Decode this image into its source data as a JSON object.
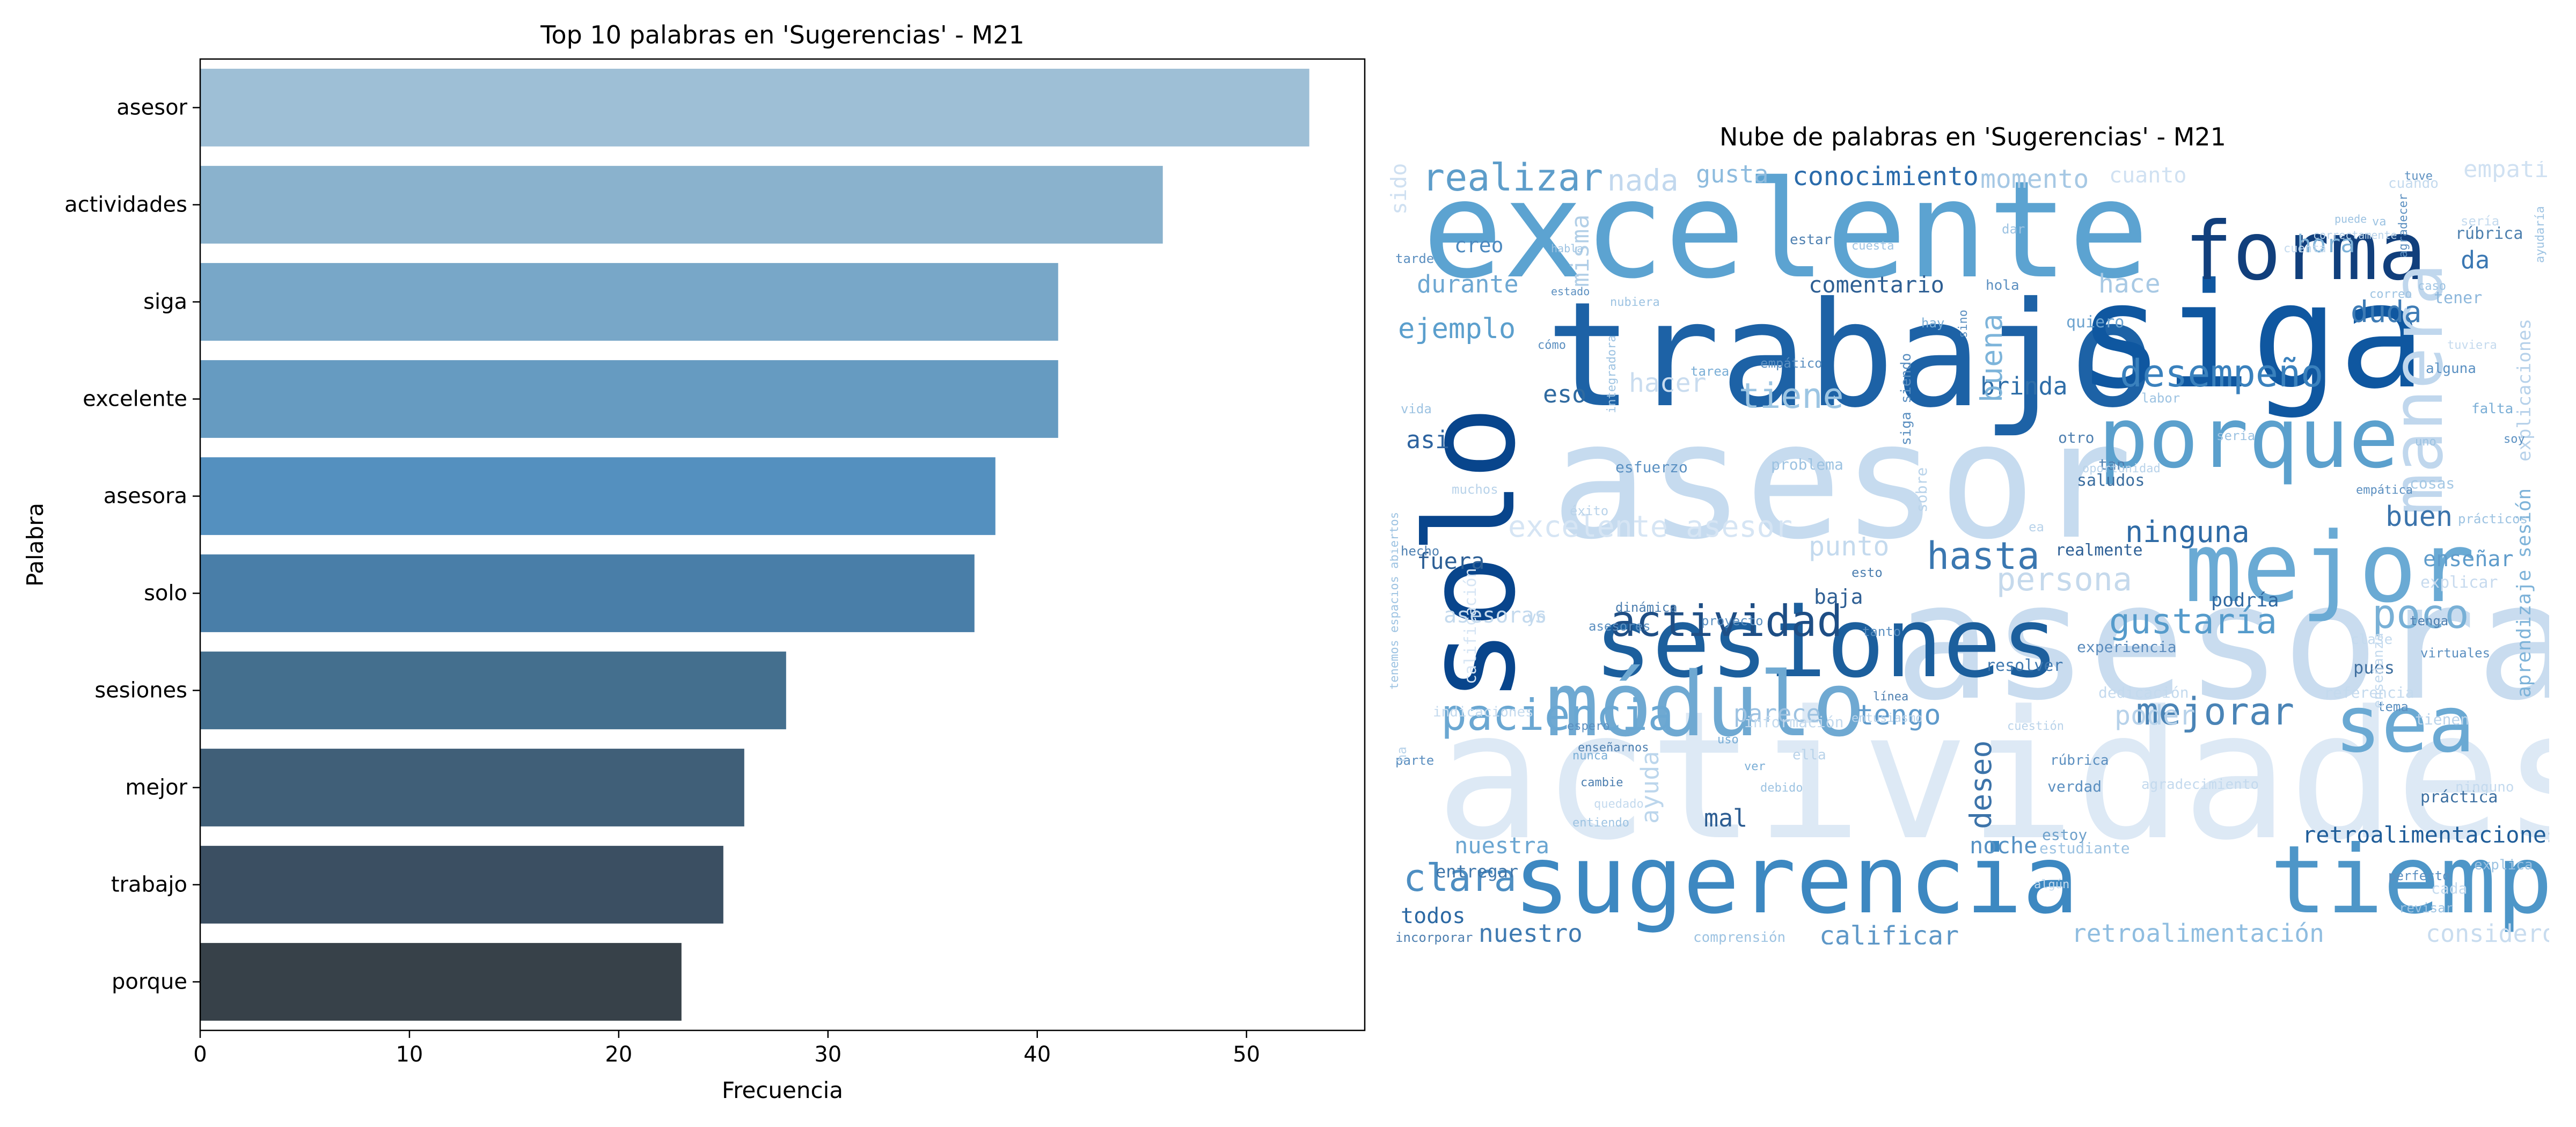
{
  "chart_data": [
    {
      "type": "bar",
      "orientation": "horizontal",
      "title": "Top 10 palabras en 'Sugerencias' - M21",
      "xlabel": "Frecuencia",
      "ylabel": "Palabra",
      "categories": [
        "asesor",
        "actividades",
        "siga",
        "excelente",
        "asesora",
        "solo",
        "sesiones",
        "mejor",
        "trabajo",
        "porque"
      ],
      "values": [
        53,
        46,
        41,
        41,
        38,
        37,
        28,
        26,
        25,
        23
      ],
      "xlim": [
        0,
        55.65
      ],
      "xticks": [
        0,
        10,
        20,
        30,
        40,
        50
      ],
      "colors": [
        "#9ebfd6",
        "#8ab2cd",
        "#78a7c8",
        "#669bc1",
        "#5490bf",
        "#497ea8",
        "#446f8e",
        "#405f78",
        "#3b4f62",
        "#374149"
      ],
      "grid": false,
      "legend": "none"
    },
    {
      "type": "wordcloud",
      "title": "Nube de palabras en 'Sugerencias' - M21",
      "words": [
        {
          "text": "actividades",
          "color": "#dde9f5"
        },
        {
          "text": "asesor",
          "color": "#c6dbef"
        },
        {
          "text": "asesora",
          "color": "#c9dcef"
        },
        {
          "text": "excelente",
          "color": "#5ca3d1"
        },
        {
          "text": "trabajo",
          "color": "#1d62a6"
        },
        {
          "text": "siga",
          "color": "#0f57a0"
        },
        {
          "text": "solo",
          "color": "#08458c"
        },
        {
          "text": "sugerencia",
          "color": "#3d88c1"
        },
        {
          "text": "tiempo",
          "color": "#4e96c8"
        },
        {
          "text": "sesiones",
          "color": "#1c5f9d"
        },
        {
          "text": "mejor",
          "color": "#6aaad4"
        },
        {
          "text": "módulo",
          "color": "#6fa9d2"
        },
        {
          "text": "forma",
          "color": "#113f7c"
        },
        {
          "text": "porque",
          "color": "#5ba0cd"
        },
        {
          "text": "manera",
          "color": "#c0d7ed"
        },
        {
          "text": "sea",
          "color": "#6aa9d3"
        },
        {
          "text": "actividad",
          "color": "#1e4e85"
        },
        {
          "text": "desempeño",
          "color": "#3a81bd"
        },
        {
          "text": "paciencia",
          "color": "#6aa7d2"
        },
        {
          "text": "mejorar",
          "color": "#4a84b6"
        },
        {
          "text": "poco",
          "color": "#78b0d6"
        },
        {
          "text": "realizar",
          "color": "#5d9dca"
        },
        {
          "text": "hasta",
          "color": "#3a77b0"
        },
        {
          "text": "gustaría",
          "color": "#559bcb"
        },
        {
          "text": "ninguna",
          "color": "#2e6aa5"
        },
        {
          "text": "clara",
          "color": "#4d8ec2"
        },
        {
          "text": "tiene",
          "color": "#9cc5e3"
        },
        {
          "text": "persona",
          "color": "#c5d9ec"
        },
        {
          "text": "conocimiento",
          "color": "#2a6bab"
        },
        {
          "text": "momento",
          "color": "#a6c8e4"
        },
        {
          "text": "duda",
          "color": "#3d7bb5"
        },
        {
          "text": "ejemplo",
          "color": "#5b9fcd"
        },
        {
          "text": "retroalimentaciones",
          "color": "#1f5d99"
        },
        {
          "text": "retroalimentación",
          "color": "#8fbde0"
        },
        {
          "text": "calificar",
          "color": "#5d97c7"
        },
        {
          "text": "nuestro",
          "color": "#3f7ab1"
        },
        {
          "text": "nuestra",
          "color": "#6aa5d1"
        },
        {
          "text": "tengo",
          "color": "#5e9acb"
        },
        {
          "text": "buen",
          "color": "#3a73ab"
        },
        {
          "text": "brinda",
          "color": "#2f6ea8"
        },
        {
          "text": "comentario",
          "color": "#2e5f93"
        },
        {
          "text": "deseo",
          "color": "#3c73a9"
        },
        {
          "text": "buena",
          "color": "#7db4da"
        },
        {
          "text": "hace",
          "color": "#a8c9e4"
        },
        {
          "text": "hora",
          "color": "#7fb2d8"
        },
        {
          "text": "durante",
          "color": "#6da7d2"
        },
        {
          "text": "misma",
          "color": "#b2cfe7"
        },
        {
          "text": "gusta",
          "color": "#8dbbde"
        },
        {
          "text": "nada",
          "color": "#c2d8ee"
        },
        {
          "text": "fuera",
          "color": "#2d5f95"
        },
        {
          "text": "noche",
          "color": "#5591c4"
        },
        {
          "text": "todos",
          "color": "#2b68a3"
        },
        {
          "text": "entregar",
          "color": "#3d75aa"
        },
        {
          "text": "poder",
          "color": "#b7d2ea"
        },
        {
          "text": "punto",
          "color": "#c4daee"
        },
        {
          "text": "parece",
          "color": "#9dc2e1"
        },
        {
          "text": "creo",
          "color": "#4c89bf"
        },
        {
          "text": "eso",
          "color": "#2f6aa0"
        },
        {
          "text": "hacer",
          "color": "#c9dcef"
        },
        {
          "text": "asi",
          "color": "#2e64a0"
        },
        {
          "text": "mal",
          "color": "#2c5d92"
        },
        {
          "text": "da",
          "color": "#3b78b3"
        },
        {
          "text": "enseñar",
          "color": "#5f9ccb"
        },
        {
          "text": "baja",
          "color": "#2f5f94"
        },
        {
          "text": "podría",
          "color": "#2f68a1"
        },
        {
          "text": "ayuda",
          "color": "#bcd6ec"
        },
        {
          "text": "considero",
          "color": "#c8dcef"
        },
        {
          "text": "pues",
          "color": "#3f6f9f"
        },
        {
          "text": "práctica",
          "color": "#3c6fa1"
        },
        {
          "text": "realmente",
          "color": "#2d5f95"
        },
        {
          "text": "resolver",
          "color": "#3f78af"
        },
        {
          "text": "empatía",
          "color": "#d0e1f2"
        },
        {
          "text": "cuanto",
          "color": "#d0e1f2"
        },
        {
          "text": "excelente asesor",
          "color": "#d6e5f4"
        },
        {
          "text": "aprendizaje sesión",
          "color": "#7eb3d9"
        },
        {
          "text": "explicaciones",
          "color": "#b6d1ea"
        },
        {
          "text": "explicar",
          "color": "#c6daee"
        },
        {
          "text": "rúbrica",
          "color": "#4c7fae"
        },
        {
          "text": "quiero",
          "color": "#6ca3cf"
        },
        {
          "text": "tener",
          "color": "#8cb7dc"
        },
        {
          "text": "verdad",
          "color": "#5b8fc0"
        },
        {
          "text": "estoy",
          "color": "#6fa1cb"
        },
        {
          "text": "estudiante",
          "color": "#9dc3e2"
        },
        {
          "text": "experiencia",
          "color": "#5b8cbd"
        },
        {
          "text": "saludos",
          "color": "#3a6d9f"
        },
        {
          "text": "tan",
          "color": "#4d7fb0"
        },
        {
          "text": "cosas",
          "color": "#a5c8e4"
        },
        {
          "text": "esfuerzo",
          "color": "#5a90c2"
        },
        {
          "text": "problema",
          "color": "#9cc2e1"
        },
        {
          "text": "otro",
          "color": "#4d7fb0"
        },
        {
          "text": "alguna",
          "color": "#5a90c2"
        },
        {
          "text": "falta",
          "color": "#7aaed6"
        },
        {
          "text": "soy",
          "color": "#5a90c2"
        },
        {
          "text": "sido",
          "color": "#cfe0f1"
        },
        {
          "text": "tarde",
          "color": "#5b8fc0"
        },
        {
          "text": "hola",
          "color": "#5b8fc0"
        },
        {
          "text": "dar",
          "color": "#9dc3e2"
        },
        {
          "text": "estar",
          "color": "#4d7fb0"
        },
        {
          "text": "hay",
          "color": "#7aaed6"
        },
        {
          "text": "empático",
          "color": "#5b8fc0"
        },
        {
          "text": "tarea",
          "color": "#7aaed6"
        },
        {
          "text": "muchos",
          "color": "#b9d3ea"
        },
        {
          "text": "hecho",
          "color": "#4d7fb0"
        },
        {
          "text": "tenga",
          "color": "#4d7fb0"
        },
        {
          "text": "virtuales",
          "color": "#5b8fc0"
        },
        {
          "text": "tema",
          "color": "#5b8fc0"
        },
        {
          "text": "tienen",
          "color": "#b9d3ea"
        },
        {
          "text": "espero",
          "color": "#5b8fc0"
        },
        {
          "text": "parte",
          "color": "#5b8fc0"
        },
        {
          "text": "nunca",
          "color": "#7aaed6"
        },
        {
          "text": "cambie",
          "color": "#4d7fb0"
        },
        {
          "text": "enseñarnos",
          "color": "#4d7fb0"
        },
        {
          "text": "uso",
          "color": "#7aaed6"
        },
        {
          "text": "ver",
          "color": "#7aaed6"
        },
        {
          "text": "debido",
          "color": "#9dc3e2"
        },
        {
          "text": "entiendo",
          "color": "#9dc3e2"
        },
        {
          "text": "incorporar",
          "color": "#4d7fb0"
        },
        {
          "text": "comprensión",
          "color": "#9dc3e2"
        },
        {
          "text": "perfecto",
          "color": "#5b8fc0"
        },
        {
          "text": "revisar",
          "color": "#9dc3e2"
        },
        {
          "text": "información",
          "color": "#c4daee"
        },
        {
          "text": "dedicación",
          "color": "#c4daee"
        },
        {
          "text": "referencia",
          "color": "#c4daee"
        },
        {
          "text": "línea",
          "color": "#4d7fb0"
        },
        {
          "text": "tanto",
          "color": "#5b8fc0"
        },
        {
          "text": "proyecto",
          "color": "#5b8fc0"
        },
        {
          "text": "asesores",
          "color": "#5b8fc0"
        },
        {
          "text": "dinámica",
          "color": "#4d7fb0"
        },
        {
          "text": "esto",
          "color": "#4d7fb0"
        },
        {
          "text": "siga siendo",
          "color": "#5b8fc0"
        },
        {
          "text": "integradora",
          "color": "#9dc3e2"
        },
        {
          "text": "éxito",
          "color": "#b9d3ea"
        },
        {
          "text": "vida",
          "color": "#9dc3e2"
        },
        {
          "text": "cómo",
          "color": "#5b8fc0"
        },
        {
          "text": "labor",
          "color": "#9dc3e2"
        },
        {
          "text": "oportunidad",
          "color": "#b9d3ea"
        },
        {
          "text": "sería",
          "color": "#9dc3e2"
        },
        {
          "text": "uno",
          "color": "#9dc3e2"
        },
        {
          "text": "empática",
          "color": "#5b8fc0"
        },
        {
          "text": "prácticos",
          "color": "#9dc3e2"
        },
        {
          "text": "tuve",
          "color": "#5b8fc0"
        },
        {
          "text": "va",
          "color": "#9dc3e2"
        },
        {
          "text": "puede",
          "color": "#9dc3e2"
        },
        {
          "text": "agradecer",
          "color": "#5b8fc0"
        },
        {
          "text": "ayudaría",
          "color": "#9dc3e2"
        },
        {
          "text": "cuando",
          "color": "#c4daee"
        },
        {
          "text": "correctamente",
          "color": "#b9d3ea"
        },
        {
          "text": "estado",
          "color": "#5b8fc0"
        },
        {
          "text": "nubiera",
          "color": "#9dc3e2"
        },
        {
          "text": "habla",
          "color": "#9dc3e2"
        },
        {
          "text": "sino",
          "color": "#5b8fc0"
        },
        {
          "text": "caso",
          "color": "#9dc3e2"
        },
        {
          "text": "correo",
          "color": "#9dc3e2"
        },
        {
          "text": "tenemos espacios abiertos",
          "color": "#9dc3e2"
        },
        {
          "text": "algún",
          "color": "#c4daee"
        },
        {
          "text": "ella",
          "color": "#b9d3ea"
        },
        {
          "text": "entusiasmo",
          "color": "#b9d3ea"
        },
        {
          "text": "cuestión",
          "color": "#b9d3ea"
        },
        {
          "text": "clase",
          "color": "#c4daee"
        },
        {
          "text": "calificación",
          "color": "#d6e5f4"
        },
        {
          "text": "enseñanza",
          "color": "#c4daee"
        },
        {
          "text": "cuesta",
          "color": "#9dc3e2"
        },
        {
          "text": "tuviera",
          "color": "#c4daee"
        },
        {
          "text": "indicaciones",
          "color": "#c4daee"
        },
        {
          "text": "explica",
          "color": "#9dc3e2"
        },
        {
          "text": "quedado",
          "color": "#c4daee"
        },
        {
          "text": "cuenta",
          "color": "#c4daee"
        },
        {
          "text": "rúbrica",
          "color": "#5b8fc0"
        },
        {
          "text": "agradecimiento",
          "color": "#c4daee"
        },
        {
          "text": "asesoras",
          "color": "#c4daee"
        },
        {
          "text": "yo",
          "color": "#c4daee"
        },
        {
          "text": "ea",
          "color": "#b9d3ea"
        },
        {
          "text": "ha",
          "color": "#b9d3ea"
        },
        {
          "text": "sería",
          "color": "#c4daee"
        },
        {
          "text": "ninguno",
          "color": "#c4daee"
        },
        {
          "text": "sobre",
          "color": "#b9d3ea"
        },
        {
          "text": "cada",
          "color": "#c4daee"
        },
        {
          "text": "considera",
          "color": "#c4daee"
        }
      ]
    }
  ]
}
